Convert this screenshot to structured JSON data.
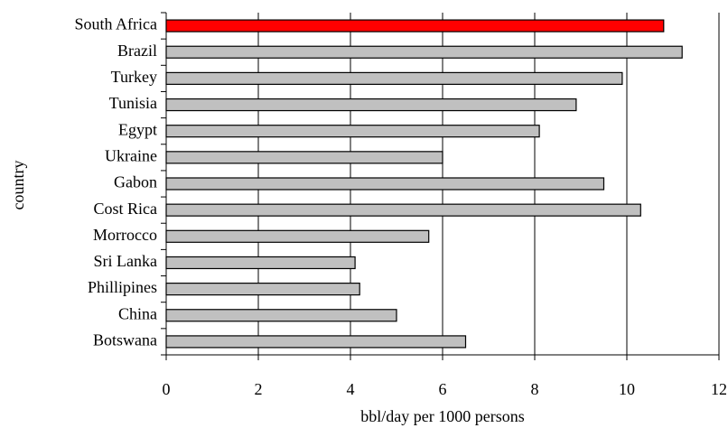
{
  "chart_data": {
    "type": "bar",
    "orientation": "horizontal",
    "x_label": "bbl/day per 1000 persons",
    "y_label": "country",
    "categories": [
      "South Africa",
      "Brazil",
      "Turkey",
      "Tunisia",
      "Egypt",
      "Ukraine",
      "Gabon",
      "Cost Rica",
      "Morrocco",
      "Sri Lanka",
      "Phillipines",
      "China",
      "Botswana"
    ],
    "values": [
      10.8,
      11.2,
      9.9,
      8.9,
      8.1,
      6.0,
      9.5,
      10.3,
      5.7,
      4.1,
      4.2,
      5.0,
      6.5
    ],
    "colors": [
      "#ff0000",
      "#c0c0c0",
      "#c0c0c0",
      "#c0c0c0",
      "#c0c0c0",
      "#c0c0c0",
      "#c0c0c0",
      "#c0c0c0",
      "#c0c0c0",
      "#c0c0c0",
      "#c0c0c0",
      "#c0c0c0",
      "#c0c0c0"
    ],
    "xlim": [
      0,
      12
    ],
    "xticks": [
      0,
      2,
      4,
      6,
      8,
      10,
      12
    ],
    "grid": true
  }
}
